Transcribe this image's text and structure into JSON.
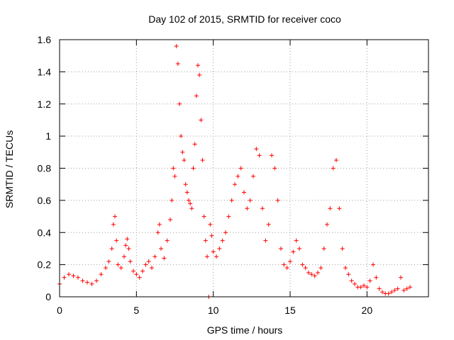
{
  "chart_data": {
    "type": "scatter",
    "title": "Day 102 of 2015, SRMTID for receiver coco",
    "xlabel": "GPS time / hours",
    "ylabel": "SRMTID / TECUs",
    "xlim": [
      0,
      24
    ],
    "ylim": [
      0,
      1.6
    ],
    "xticks": [
      0,
      5,
      10,
      15,
      20
    ],
    "xtick_labels": [
      "0",
      "5",
      "10",
      "15",
      "20"
    ],
    "yticks": [
      0,
      0.2,
      0.4,
      0.6,
      0.8,
      1,
      1.2,
      1.4,
      1.6
    ],
    "ytick_labels": [
      "0",
      "0.2",
      "0.4",
      "0.6",
      "0.8",
      "1",
      "1.2",
      "1.4",
      "1.6"
    ],
    "grid": true,
    "marker": "+",
    "color": "#ff0000",
    "series": [
      {
        "name": "SRMTID",
        "x": [
          0.0,
          0.3,
          0.6,
          0.9,
          1.2,
          1.5,
          1.8,
          2.1,
          2.4,
          2.7,
          3.0,
          3.2,
          3.4,
          3.5,
          3.6,
          3.7,
          3.8,
          4.0,
          4.2,
          4.3,
          4.4,
          4.5,
          4.6,
          4.8,
          5.0,
          5.2,
          5.4,
          5.6,
          5.8,
          6.0,
          6.2,
          6.4,
          6.5,
          6.6,
          6.8,
          7.0,
          7.2,
          7.3,
          7.4,
          7.5,
          7.6,
          7.7,
          7.8,
          7.9,
          8.0,
          8.1,
          8.2,
          8.3,
          8.4,
          8.5,
          8.6,
          8.7,
          8.8,
          8.9,
          9.0,
          9.1,
          9.2,
          9.3,
          9.4,
          9.5,
          9.6,
          9.7,
          9.8,
          9.9,
          10.0,
          10.2,
          10.4,
          10.6,
          10.8,
          11.0,
          11.2,
          11.4,
          11.6,
          11.8,
          12.0,
          12.2,
          12.4,
          12.6,
          12.8,
          13.0,
          13.2,
          13.4,
          13.6,
          13.8,
          14.0,
          14.2,
          14.4,
          14.6,
          14.8,
          15.0,
          15.2,
          15.4,
          15.6,
          15.8,
          16.0,
          16.2,
          16.4,
          16.6,
          16.8,
          17.0,
          17.2,
          17.4,
          17.6,
          17.8,
          18.0,
          18.2,
          18.4,
          18.6,
          18.8,
          19.0,
          19.2,
          19.4,
          19.6,
          19.8,
          20.0,
          20.2,
          20.4,
          20.6,
          20.8,
          21.0,
          21.2,
          21.4,
          21.6,
          21.8,
          22.0,
          22.2,
          22.4,
          22.6,
          22.8
        ],
        "y": [
          0.08,
          0.12,
          0.14,
          0.13,
          0.12,
          0.1,
          0.09,
          0.08,
          0.1,
          0.14,
          0.18,
          0.22,
          0.3,
          0.45,
          0.5,
          0.35,
          0.2,
          0.18,
          0.25,
          0.32,
          0.36,
          0.3,
          0.22,
          0.16,
          0.14,
          0.12,
          0.16,
          0.2,
          0.22,
          0.18,
          0.25,
          0.4,
          0.45,
          0.3,
          0.24,
          0.35,
          0.48,
          0.6,
          0.8,
          0.75,
          1.56,
          1.45,
          1.2,
          1.0,
          0.9,
          0.85,
          0.7,
          0.65,
          0.6,
          0.58,
          0.55,
          0.8,
          0.95,
          1.25,
          1.44,
          1.38,
          1.1,
          0.85,
          0.5,
          0.35,
          0.25,
          0.0,
          0.45,
          0.38,
          0.28,
          0.25,
          0.3,
          0.35,
          0.4,
          0.5,
          0.6,
          0.7,
          0.75,
          0.8,
          0.65,
          0.55,
          0.6,
          0.75,
          0.92,
          0.88,
          0.55,
          0.35,
          0.45,
          0.88,
          0.8,
          0.6,
          0.3,
          0.2,
          0.18,
          0.22,
          0.28,
          0.35,
          0.3,
          0.2,
          0.18,
          0.15,
          0.14,
          0.13,
          0.15,
          0.18,
          0.3,
          0.45,
          0.55,
          0.8,
          0.85,
          0.55,
          0.3,
          0.18,
          0.14,
          0.1,
          0.08,
          0.06,
          0.06,
          0.07,
          0.06,
          0.1,
          0.2,
          0.12,
          0.05,
          0.03,
          0.02,
          0.02,
          0.03,
          0.04,
          0.05,
          0.12,
          0.04,
          0.05,
          0.06
        ]
      }
    ]
  }
}
